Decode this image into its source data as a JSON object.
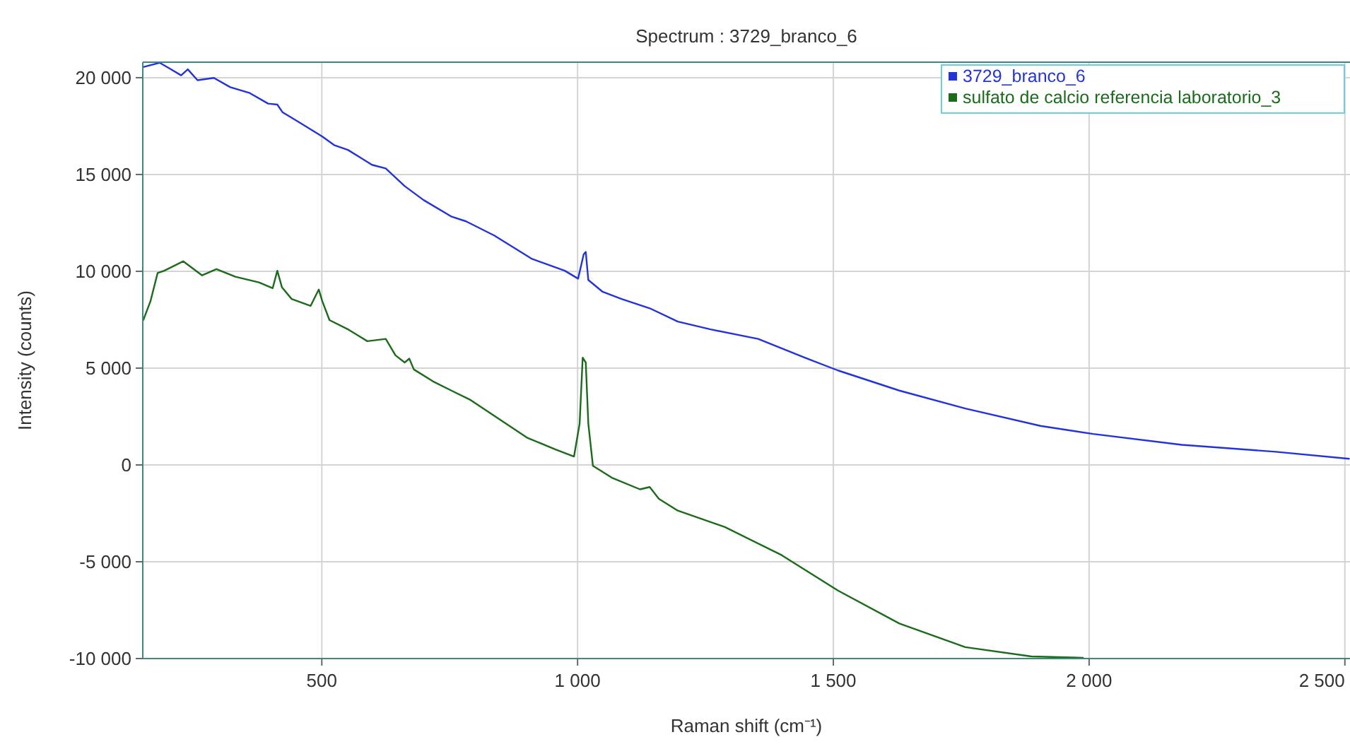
{
  "chart_data": {
    "type": "line",
    "title": "Spectrum : 3729_branco_6",
    "xlabel": "Raman shift (cm⁻¹)",
    "ylabel": "Intensity (counts)",
    "xlim": [
      150,
      2510
    ],
    "ylim": [
      -10000,
      20800
    ],
    "xticks": [
      500,
      {
        "value": 1000,
        "label": "1 000"
      },
      {
        "value": 1500,
        "label": "1 500"
      },
      {
        "value": 2000,
        "label": "2 000"
      },
      {
        "value": 2500,
        "label": "2 500"
      }
    ],
    "yticks": [
      {
        "value": -10000,
        "label": "-10 000"
      },
      {
        "value": -5000,
        "label": "-5 000"
      },
      0,
      {
        "value": 5000,
        "label": "5 000"
      },
      {
        "value": 10000,
        "label": "10 000"
      },
      {
        "value": 15000,
        "label": "15 000"
      },
      {
        "value": 20000,
        "label": "20 000"
      }
    ],
    "grid": true,
    "legend": "top right",
    "marker": "none",
    "line_style": "solid",
    "series": [
      {
        "name": "3729_branco_6",
        "color": "#2233dd",
        "x": [
          151,
          183,
          202,
          225,
          238,
          257,
          289,
          321,
          358,
          395,
          413,
          423,
          459,
          501,
          524,
          551,
          598,
          625,
          662,
          699,
          754,
          782,
          837,
          911,
          975,
          1001,
          1012,
          1016,
          1021,
          1049,
          1086,
          1141,
          1196,
          1260,
          1353,
          1445,
          1509,
          1629,
          1758,
          1905,
          2008,
          2181,
          2365,
          2508
        ],
        "values": [
          20550,
          20770,
          20480,
          20120,
          20430,
          19870,
          19990,
          19510,
          19220,
          18660,
          18610,
          18220,
          17640,
          16960,
          16520,
          16270,
          15500,
          15310,
          14400,
          13680,
          12820,
          12580,
          11850,
          10640,
          10030,
          9620,
          10880,
          11000,
          9550,
          8940,
          8570,
          8090,
          7400,
          7000,
          6510,
          5530,
          4880,
          3840,
          2915,
          2015,
          1600,
          1040,
          680,
          320
        ]
      },
      {
        "name": "sulfato de calcio referencia laboratorio_3",
        "color": "#1a6b1a",
        "x": [
          151,
          165,
          179,
          192,
          229,
          266,
          294,
          331,
          377,
          404,
          413,
          422,
          441,
          478,
          494,
          501,
          515,
          552,
          589,
          625,
          644,
          662,
          671,
          680,
          717,
          754,
          791,
          846,
          901,
          957,
          993,
          1004,
          1010,
          1016,
          1021,
          1030,
          1067,
          1122,
          1141,
          1159,
          1196,
          1288,
          1399,
          1509,
          1629,
          1758,
          1887,
          1988
        ],
        "values": [
          7480,
          8450,
          9910,
          10030,
          10520,
          9790,
          10110,
          9720,
          9430,
          9130,
          10030,
          9180,
          8570,
          8210,
          9060,
          8450,
          7480,
          6990,
          6390,
          6510,
          5660,
          5290,
          5490,
          4930,
          4320,
          3830,
          3350,
          2380,
          1410,
          800,
          435,
          2130,
          5540,
          5290,
          2130,
          -50,
          -660,
          -1260,
          -1140,
          -1750,
          -2360,
          -3210,
          -4660,
          -6490,
          -8190,
          -9410,
          -9890,
          -9960
        ]
      }
    ]
  }
}
